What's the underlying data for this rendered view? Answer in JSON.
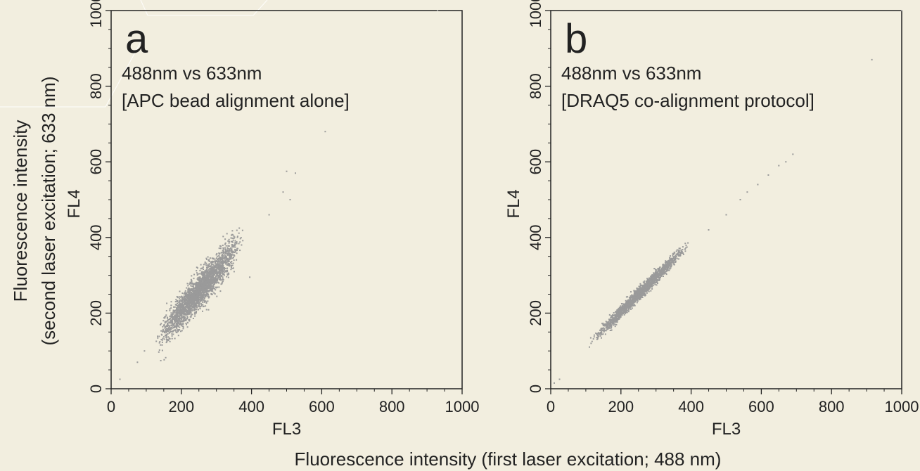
{
  "figure": {
    "shared_ylabel_line1": "Fluorescence intensity",
    "shared_ylabel_line2": "(second laser excitation; 633 nm)",
    "shared_xlabel": "Fluorescence intensity (first laser excitation; 488 nm)"
  },
  "colors": {
    "background": "#f2eedf",
    "points": "#9a9a9a",
    "axis": "#222222"
  },
  "chart_data": [
    {
      "type": "scatter",
      "panel_label": "a",
      "subtitle_line1": "488nm vs 633nm",
      "subtitle_line2": "[APC bead alignment alone]",
      "xlabel": "FL3",
      "ylabel": "FL4",
      "xlim": [
        0,
        1000
      ],
      "ylim": [
        0,
        1000
      ],
      "x_ticks": [
        "0",
        "200",
        "400",
        "600",
        "800",
        "1000"
      ],
      "y_ticks": [
        "0",
        "200",
        "400",
        "600",
        "800",
        "1000"
      ],
      "grid": false,
      "cloud": {
        "x_range": [
          130,
          370
        ],
        "slope": 1.05,
        "intercept": -5,
        "spread": 22,
        "n": 2600
      },
      "outliers": [
        [
          25,
          25
        ],
        [
          75,
          70
        ],
        [
          95,
          100
        ],
        [
          930,
          1000
        ],
        [
          610,
          680
        ],
        [
          500,
          575
        ],
        [
          525,
          570
        ],
        [
          490,
          520
        ],
        [
          510,
          500
        ],
        [
          450,
          460
        ],
        [
          330,
          410
        ],
        [
          350,
          340
        ],
        [
          395,
          295
        ]
      ]
    },
    {
      "type": "scatter",
      "panel_label": "b",
      "subtitle_line1": "488nm vs 633nm",
      "subtitle_line2": "[DRAQ5 co-alignment protocol]",
      "xlabel": "FL3",
      "ylabel": "FL4",
      "xlim": [
        0,
        1000
      ],
      "ylim": [
        0,
        1000
      ],
      "x_ticks": [
        "0",
        "200",
        "400",
        "600",
        "800",
        "1000"
      ],
      "y_ticks": [
        "0",
        "200",
        "400",
        "600",
        "800",
        "1000"
      ],
      "grid": false,
      "cloud": {
        "x_range": [
          120,
          390
        ],
        "slope": 0.93,
        "intercept": 17,
        "spread": 8,
        "n": 1900
      },
      "outliers": [
        [
          10,
          15
        ],
        [
          25,
          25
        ],
        [
          115,
          120
        ],
        [
          1000,
          1000
        ],
        [
          915,
          870
        ],
        [
          690,
          620
        ],
        [
          670,
          600
        ],
        [
          650,
          590
        ],
        [
          620,
          565
        ],
        [
          590,
          540
        ],
        [
          560,
          520
        ],
        [
          540,
          500
        ],
        [
          500,
          460
        ],
        [
          450,
          420
        ]
      ]
    }
  ]
}
